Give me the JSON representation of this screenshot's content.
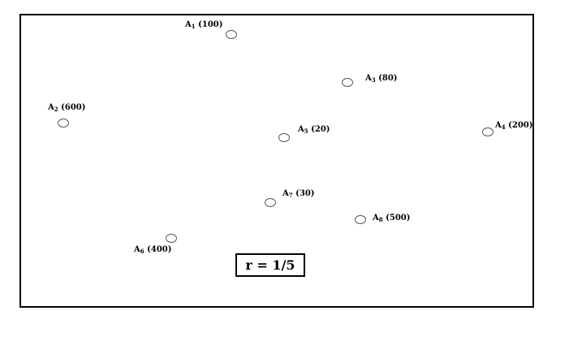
{
  "diagram": {
    "nodes": [
      {
        "id": "A1",
        "letter": "A",
        "sub": "1",
        "weight": "(100)"
      },
      {
        "id": "A2",
        "letter": "A",
        "sub": "2",
        "weight": "(600)"
      },
      {
        "id": "A3",
        "letter": "A",
        "sub": "3",
        "weight": "(80)"
      },
      {
        "id": "A4",
        "letter": "A",
        "sub": "4",
        "weight": "(200)"
      },
      {
        "id": "A5",
        "letter": "A",
        "sub": "5",
        "weight": "(20)"
      },
      {
        "id": "A6",
        "letter": "A",
        "sub": "6",
        "weight": "(400)"
      },
      {
        "id": "A7",
        "letter": "A",
        "sub": "7",
        "weight": "(30)"
      },
      {
        "id": "A8",
        "letter": "A",
        "sub": "8",
        "weight": "(500)"
      }
    ],
    "ratio_label": "r = 1/5"
  }
}
